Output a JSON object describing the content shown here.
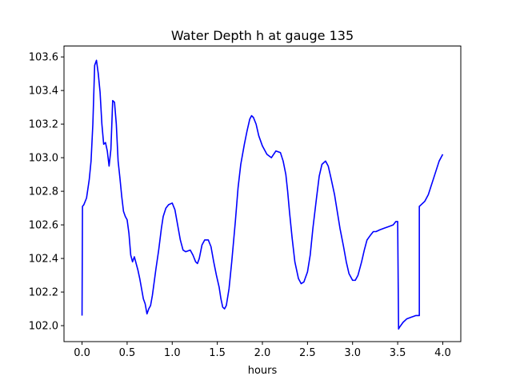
{
  "chart_data": {
    "type": "line",
    "title": "Water Depth h at gauge 135",
    "xlabel": "hours",
    "ylabel": "",
    "xlim": [
      -0.2,
      4.2
    ],
    "ylim": [
      101.905,
      103.665
    ],
    "xticks": [
      0.0,
      0.5,
      1.0,
      1.5,
      2.0,
      2.5,
      3.0,
      3.5,
      4.0
    ],
    "xtick_labels": [
      "0.0",
      "0.5",
      "1.0",
      "1.5",
      "2.0",
      "2.5",
      "3.0",
      "3.5",
      "4.0"
    ],
    "yticks": [
      102.0,
      102.2,
      102.4,
      102.6,
      102.8,
      103.0,
      103.2,
      103.4,
      103.6
    ],
    "ytick_labels": [
      "102.0",
      "102.2",
      "102.4",
      "102.6",
      "102.8",
      "103.0",
      "103.2",
      "103.4",
      "103.6"
    ],
    "grid": false,
    "series": [
      {
        "color": "#0000ff",
        "x": [
          0.0,
          0.005,
          0.02,
          0.05,
          0.08,
          0.1,
          0.12,
          0.14,
          0.16,
          0.18,
          0.2,
          0.22,
          0.24,
          0.26,
          0.28,
          0.3,
          0.32,
          0.34,
          0.36,
          0.38,
          0.4,
          0.42,
          0.44,
          0.46,
          0.48,
          0.5,
          0.52,
          0.54,
          0.56,
          0.58,
          0.6,
          0.62,
          0.64,
          0.66,
          0.68,
          0.7,
          0.72,
          0.74,
          0.76,
          0.78,
          0.8,
          0.82,
          0.85,
          0.88,
          0.9,
          0.93,
          0.96,
          1.0,
          1.03,
          1.06,
          1.09,
          1.12,
          1.15,
          1.2,
          1.23,
          1.26,
          1.28,
          1.3,
          1.33,
          1.36,
          1.4,
          1.43,
          1.46,
          1.49,
          1.52,
          1.54,
          1.56,
          1.58,
          1.6,
          1.63,
          1.66,
          1.7,
          1.73,
          1.76,
          1.8,
          1.83,
          1.86,
          1.88,
          1.9,
          1.93,
          1.96,
          2.0,
          2.05,
          2.1,
          2.15,
          2.2,
          2.23,
          2.26,
          2.28,
          2.3,
          2.33,
          2.36,
          2.4,
          2.43,
          2.46,
          2.5,
          2.53,
          2.56,
          2.6,
          2.63,
          2.66,
          2.7,
          2.73,
          2.76,
          2.8,
          2.83,
          2.86,
          2.9,
          2.93,
          2.96,
          3.0,
          3.03,
          3.06,
          3.1,
          3.13,
          3.16,
          3.2,
          3.23,
          3.26,
          3.3,
          3.35,
          3.4,
          3.45,
          3.48,
          3.5,
          3.51,
          3.52,
          3.56,
          3.6,
          3.65,
          3.7,
          3.74,
          3.74,
          3.76,
          3.8,
          3.84,
          3.87,
          3.9,
          3.93,
          3.96,
          4.0
        ],
        "y": [
          102.06,
          102.71,
          102.72,
          102.76,
          102.87,
          102.98,
          103.2,
          103.55,
          103.58,
          103.5,
          103.39,
          103.2,
          103.08,
          103.09,
          103.04,
          102.95,
          103.05,
          103.34,
          103.33,
          103.2,
          102.98,
          102.88,
          102.77,
          102.68,
          102.65,
          102.63,
          102.55,
          102.42,
          102.38,
          102.41,
          102.37,
          102.33,
          102.28,
          102.22,
          102.16,
          102.13,
          102.07,
          102.1,
          102.12,
          102.18,
          102.26,
          102.34,
          102.45,
          102.58,
          102.65,
          102.7,
          102.72,
          102.73,
          102.69,
          102.6,
          102.51,
          102.45,
          102.44,
          102.45,
          102.42,
          102.38,
          102.37,
          102.4,
          102.48,
          102.51,
          102.51,
          102.47,
          102.38,
          102.3,
          102.23,
          102.16,
          102.11,
          102.1,
          102.12,
          102.22,
          102.38,
          102.62,
          102.82,
          102.96,
          103.08,
          103.16,
          103.23,
          103.25,
          103.24,
          103.2,
          103.13,
          103.07,
          103.02,
          103.0,
          103.04,
          103.03,
          102.98,
          102.9,
          102.8,
          102.68,
          102.52,
          102.38,
          102.28,
          102.25,
          102.26,
          102.32,
          102.42,
          102.58,
          102.76,
          102.89,
          102.96,
          102.98,
          102.95,
          102.88,
          102.78,
          102.68,
          102.58,
          102.47,
          102.38,
          102.31,
          102.27,
          102.27,
          102.3,
          102.38,
          102.45,
          102.51,
          102.54,
          102.56,
          102.56,
          102.57,
          102.58,
          102.59,
          102.6,
          102.62,
          102.62,
          101.98,
          101.99,
          102.02,
          102.04,
          102.05,
          102.06,
          102.06,
          102.71,
          102.72,
          102.74,
          102.78,
          102.83,
          102.88,
          102.93,
          102.98,
          103.02
        ]
      }
    ]
  }
}
